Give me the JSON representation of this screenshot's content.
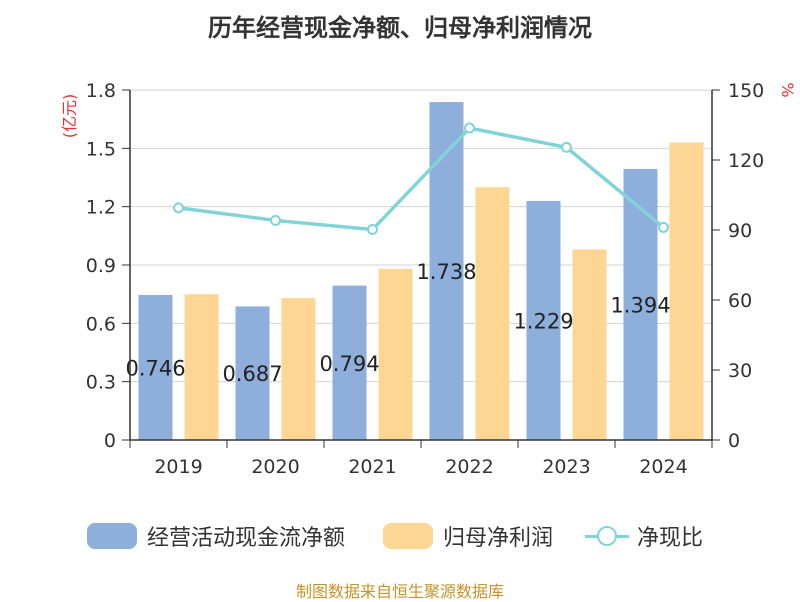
{
  "chart_data": {
    "type": "bar",
    "title": "历年经营现金净额、归母净利润情况",
    "categories": [
      "2019",
      "2020",
      "2021",
      "2022",
      "2023",
      "2024"
    ],
    "left_axis": {
      "unit": "(亿元)",
      "ylim": [
        0,
        1.8
      ],
      "ticks": [
        "0",
        "0.3",
        "0.6",
        "0.9",
        "1.2",
        "1.5",
        "1.8"
      ]
    },
    "right_axis": {
      "unit": "%",
      "ylim": [
        0,
        150
      ],
      "ticks": [
        "0",
        "30",
        "60",
        "90",
        "120",
        "150"
      ]
    },
    "series": [
      {
        "name": "经营活动现金流净额",
        "kind": "bar",
        "axis": "left",
        "color": "#8eaedb",
        "values": [
          0.746,
          0.687,
          0.794,
          1.738,
          1.229,
          1.394
        ],
        "labels": [
          "0.746",
          "0.687",
          "0.794",
          "1.738",
          "1.229",
          "1.394"
        ]
      },
      {
        "name": "归母净利润",
        "kind": "bar",
        "axis": "left",
        "color": "#fed694",
        "values": [
          0.75,
          0.73,
          0.88,
          1.3,
          0.98,
          1.53
        ]
      },
      {
        "name": "净现比",
        "kind": "line",
        "axis": "right",
        "color": "#80d4d8",
        "values": [
          99.5,
          94.1,
          90.2,
          133.7,
          125.4,
          91.1
        ]
      }
    ],
    "grid": true,
    "legend": "bottom"
  },
  "source": "制图数据来自恒生聚源数据库"
}
